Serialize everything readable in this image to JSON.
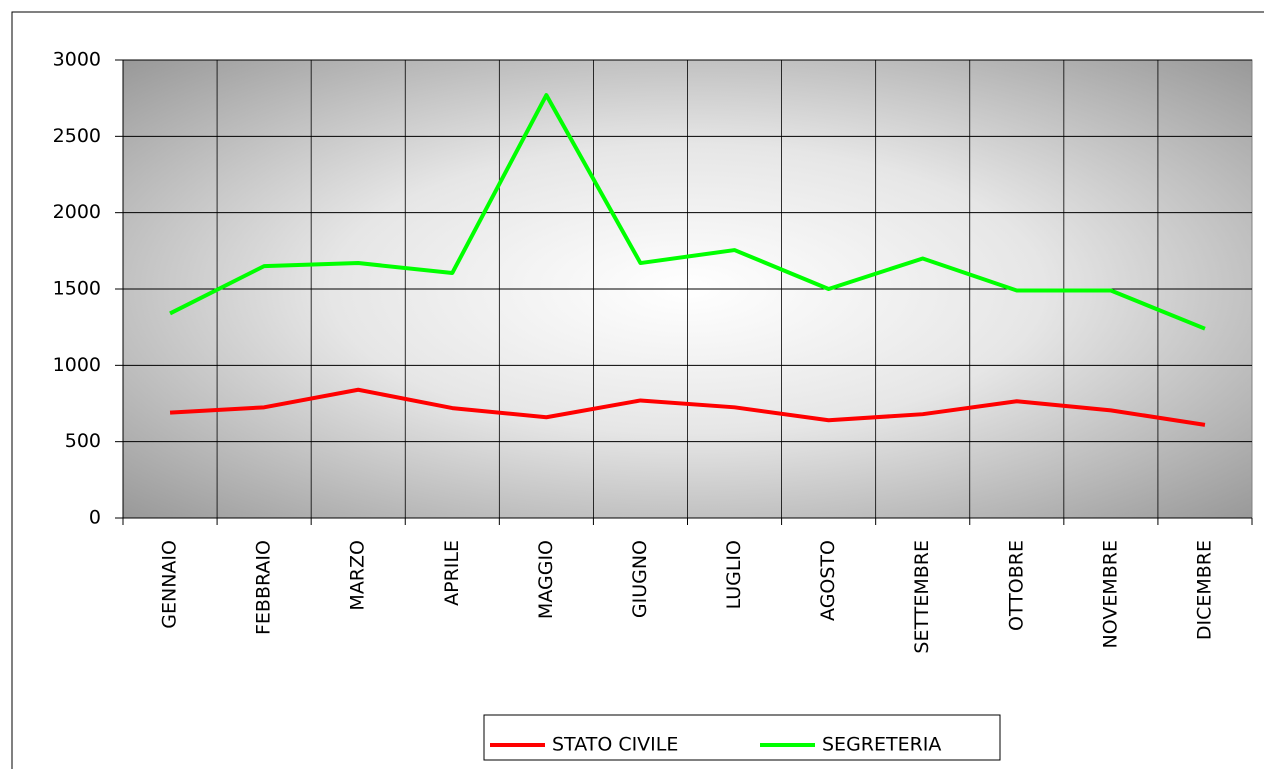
{
  "chart_data": {
    "type": "line",
    "categories": [
      "GENNAIO",
      "FEBBRAIO",
      "MARZO",
      "APRILE",
      "MAGGIO",
      "GIUGNO",
      "LUGLIO",
      "AGOSTO",
      "SETTEMBRE",
      "OTTOBRE",
      "NOVEMBRE",
      "DICEMBRE"
    ],
    "series": [
      {
        "name": "STATO CIVILE",
        "color": "#ff0000",
        "values": [
          690,
          725,
          840,
          720,
          660,
          770,
          725,
          640,
          680,
          765,
          705,
          610
        ]
      },
      {
        "name": "SEGRETERIA",
        "color": "#00ff00",
        "values": [
          1340,
          1650,
          1670,
          1605,
          2770,
          1670,
          1755,
          1500,
          1700,
          1490,
          1490,
          1240
        ]
      }
    ],
    "ylim": [
      0,
      3000
    ],
    "yticks": [
      0,
      500,
      1000,
      1500,
      2000,
      2500,
      3000
    ],
    "grid": true
  }
}
